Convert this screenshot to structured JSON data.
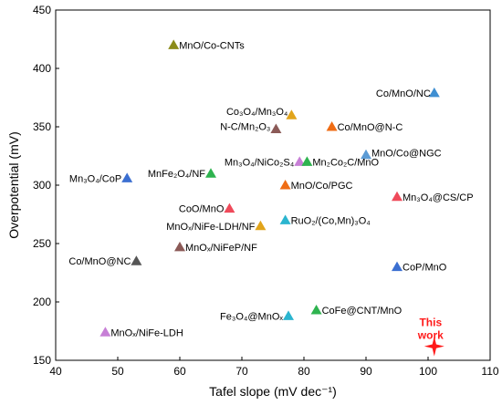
{
  "chart_data": {
    "type": "scatter",
    "xlabel": "Tafel slope (mV dec⁻¹)",
    "ylabel": "Overpotential (mV)",
    "xlim": [
      40,
      110
    ],
    "ylim": [
      150,
      450
    ],
    "xticks": [
      40,
      50,
      60,
      70,
      80,
      90,
      100,
      110
    ],
    "yticks": [
      150,
      200,
      250,
      300,
      350,
      400,
      450
    ],
    "grid": false,
    "points": [
      {
        "label": "MnO/Co-CNTs",
        "x": 59,
        "y": 420,
        "color": "#8b8b1a",
        "marker": "triangle"
      },
      {
        "label": "Co/MnO/NC",
        "x": 101,
        "y": 379,
        "color": "#3f8fd2",
        "marker": "triangle"
      },
      {
        "label": "Co₃O₄/Mn₃O₄",
        "x": 78,
        "y": 360,
        "color": "#e1a41b",
        "marker": "triangle"
      },
      {
        "label": "Co/MnO@N-C",
        "x": 84.5,
        "y": 350,
        "color": "#ef6c14",
        "marker": "triangle"
      },
      {
        "label": "N-C/Mn₂O₃",
        "x": 75.5,
        "y": 348,
        "color": "#8b5a57",
        "marker": "triangle"
      },
      {
        "label": "MnO/Co@NGC",
        "x": 90,
        "y": 326,
        "color": "#5b9bd5",
        "marker": "triangle"
      },
      {
        "label": "Mn₃O₄/NiCo₂S₄",
        "x": 79.3,
        "y": 320,
        "color": "#c77fd6",
        "marker": "triangle"
      },
      {
        "label": "Mn₂Co₂C/MnO",
        "x": 80.5,
        "y": 320,
        "color": "#2eb34f",
        "marker": "triangle"
      },
      {
        "label": "MnFe₂O₄/NF",
        "x": 65,
        "y": 310,
        "color": "#2eb34f",
        "marker": "triangle"
      },
      {
        "label": "Mn₃O₄/CoP",
        "x": 51.5,
        "y": 306,
        "color": "#3b6fd1",
        "marker": "triangle"
      },
      {
        "label": "MnO/Co/PGC",
        "x": 77,
        "y": 300,
        "color": "#ef6c14",
        "marker": "triangle"
      },
      {
        "label": "Mn₃O₄@CS/CP",
        "x": 95,
        "y": 290,
        "color": "#ef4a5a",
        "marker": "triangle"
      },
      {
        "label": "CoO/MnO",
        "x": 68,
        "y": 280,
        "color": "#ef4a5a",
        "marker": "triangle"
      },
      {
        "label": "RuO₂/(Co,Mn)₃O₄",
        "x": 77,
        "y": 270,
        "color": "#2bb5cf",
        "marker": "triangle"
      },
      {
        "label": "MnOₓ/NiFe-LDH/NF",
        "x": 73,
        "y": 265,
        "color": "#e1a41b",
        "marker": "triangle"
      },
      {
        "label": "MnOₓ/NiFeP/NF",
        "x": 60,
        "y": 247,
        "color": "#8b5a57",
        "marker": "triangle"
      },
      {
        "label": "Co/MnO@NC",
        "x": 53,
        "y": 235,
        "color": "#555555",
        "marker": "triangle"
      },
      {
        "label": "CoP/MnO",
        "x": 95,
        "y": 230,
        "color": "#3b6fd1",
        "marker": "triangle"
      },
      {
        "label": "CoFe@CNT/MnO",
        "x": 82,
        "y": 193,
        "color": "#2eb34f",
        "marker": "triangle"
      },
      {
        "label": "Fe₃O₄@MnOₓ",
        "x": 77.5,
        "y": 188,
        "color": "#2bb5cf",
        "marker": "triangle"
      },
      {
        "label": "MnOₓ/NiFe-LDH",
        "x": 48,
        "y": 174,
        "color": "#c77fd6",
        "marker": "triangle"
      },
      {
        "label": "This work",
        "x": 101,
        "y": 162,
        "color": "#ff1a1a",
        "marker": "star"
      }
    ]
  }
}
